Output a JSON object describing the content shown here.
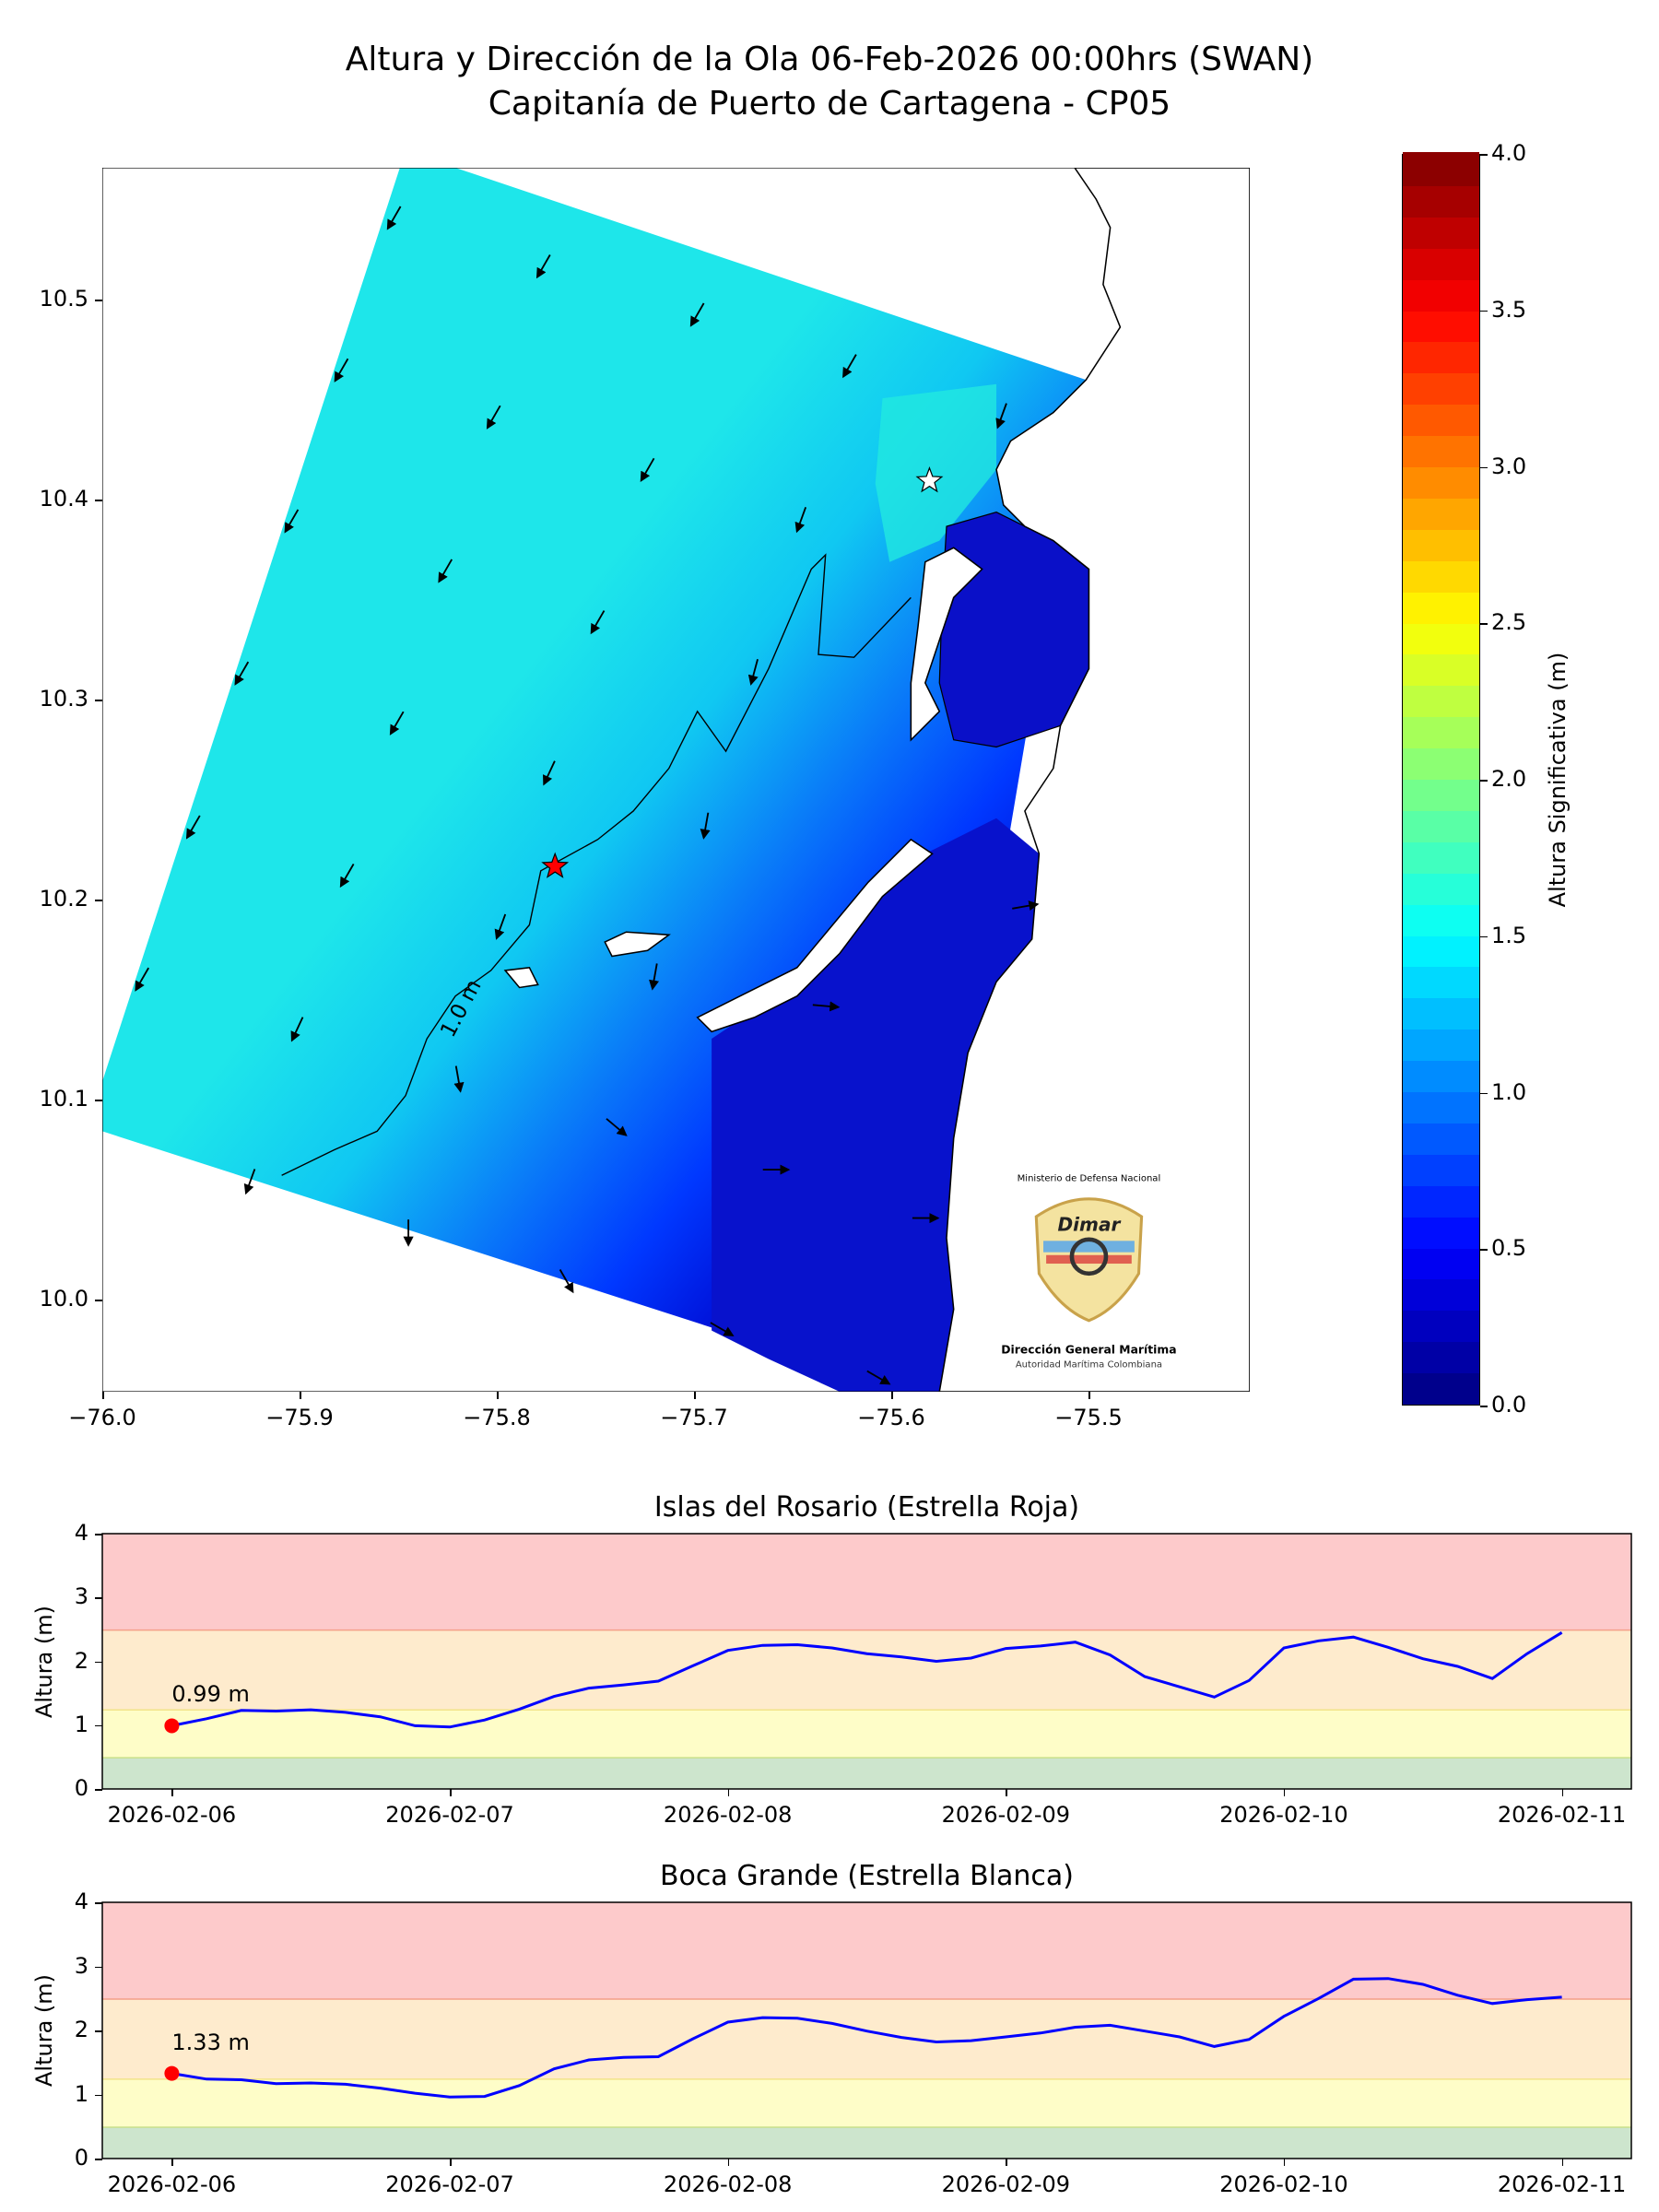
{
  "title": {
    "line1": "Altura y Dirección de la Ola 06-Feb-2026 00:00hrs (SWAN)",
    "line2": "Capitanía de Puerto de Cartagena - CP05"
  },
  "map": {
    "x_ticks": [
      -76.0,
      -75.9,
      -75.8,
      -75.7,
      -75.6,
      -75.5
    ],
    "x_tick_labels": [
      "−76.0",
      "−75.9",
      "−75.8",
      "−75.7",
      "−75.6",
      "−75.5"
    ],
    "y_ticks": [
      10.0,
      10.1,
      10.2,
      10.3,
      10.4,
      10.5
    ],
    "y_tick_labels": [
      "10.0",
      "10.1",
      "10.2",
      "10.3",
      "10.4",
      "10.5"
    ],
    "contour_label": "1.0 m",
    "markers": [
      {
        "name": "Islas del Rosario",
        "color": "#ff0000"
      },
      {
        "name": "Boca Grande",
        "color": "#ffffff"
      }
    ]
  },
  "colorbar": {
    "label": "Altura Significativa (m)",
    "min": 0,
    "max": 4,
    "levels": 40,
    "ticks": [
      "0.0",
      "0.5",
      "1.0",
      "1.5",
      "2.0",
      "2.5",
      "3.0",
      "3.5",
      "4.0"
    ]
  },
  "logo": {
    "top": "Ministerio de Defensa Nacional",
    "brand": "Dimar",
    "name": "Dirección General Marítima",
    "subtitle": "Autoridad Marítima Colombiana"
  },
  "chart_data": [
    {
      "type": "line",
      "title": "Islas del Rosario (Estrella Roja)",
      "ylabel": "Altura (m)",
      "ylim": [
        0,
        4
      ],
      "yticks": [
        "0",
        "1",
        "2",
        "3",
        "4"
      ],
      "xticks": [
        "2026-02-06",
        "2026-02-07",
        "2026-02-08",
        "2026-02-09",
        "2026-02-10",
        "2026-02-11"
      ],
      "x_step_hours": 3,
      "current_label": "0.99 m",
      "color": "#0000ff",
      "bands": [
        {
          "from": 0,
          "to": 0.5,
          "color": "#cde5cd"
        },
        {
          "from": 0.5,
          "to": 1.25,
          "color": "#fefdc8"
        },
        {
          "from": 1.25,
          "to": 2.5,
          "color": "#feebcd"
        },
        {
          "from": 2.5,
          "to": 4,
          "color": "#fdcacb"
        }
      ],
      "values": [
        0.99,
        1.1,
        1.23,
        1.22,
        1.24,
        1.2,
        1.13,
        0.99,
        0.97,
        1.08,
        1.25,
        1.45,
        1.58,
        1.63,
        1.69,
        1.93,
        2.17,
        2.25,
        2.26,
        2.21,
        2.12,
        2.07,
        2.0,
        2.05,
        2.2,
        2.24,
        2.3,
        2.1,
        1.76,
        1.6,
        1.44,
        1.7,
        2.21,
        2.32,
        2.38,
        2.22,
        2.04,
        1.92,
        1.73,
        2.12,
        2.45
      ]
    },
    {
      "type": "line",
      "title": "Boca Grande (Estrella Blanca)",
      "ylabel": "Altura (m)",
      "ylim": [
        0,
        4
      ],
      "yticks": [
        "0",
        "1",
        "2",
        "3",
        "4"
      ],
      "xticks": [
        "2026-02-06",
        "2026-02-07",
        "2026-02-08",
        "2026-02-09",
        "2026-02-10",
        "2026-02-11"
      ],
      "x_step_hours": 3,
      "current_label": "1.33 m",
      "color": "#0000ff",
      "bands": [
        {
          "from": 0,
          "to": 0.5,
          "color": "#cde5cd"
        },
        {
          "from": 0.5,
          "to": 1.25,
          "color": "#fefdc8"
        },
        {
          "from": 1.25,
          "to": 2.5,
          "color": "#feebcd"
        },
        {
          "from": 2.5,
          "to": 4,
          "color": "#fdcacb"
        }
      ],
      "values": [
        1.33,
        1.24,
        1.23,
        1.17,
        1.18,
        1.16,
        1.1,
        1.02,
        0.96,
        0.97,
        1.14,
        1.4,
        1.54,
        1.58,
        1.59,
        1.87,
        2.13,
        2.2,
        2.19,
        2.11,
        1.99,
        1.89,
        1.82,
        1.84,
        1.9,
        1.96,
        2.05,
        2.08,
        1.99,
        1.9,
        1.75,
        1.86,
        2.22,
        2.5,
        2.8,
        2.81,
        2.72,
        2.55,
        2.42,
        2.48,
        2.52
      ]
    }
  ]
}
